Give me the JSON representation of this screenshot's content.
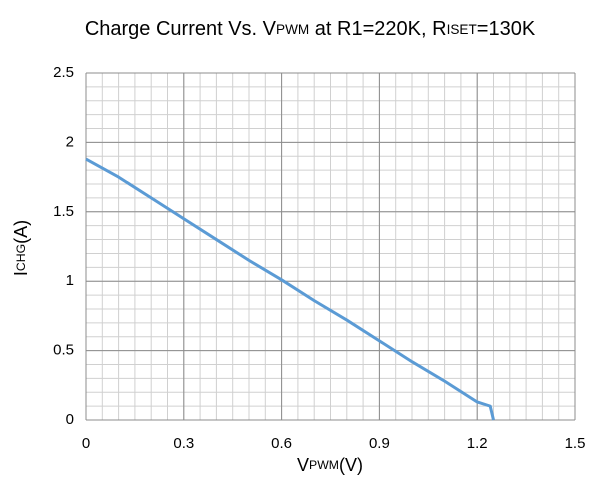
{
  "chart_data": {
    "type": "line",
    "title": [
      {
        "text": "Charge Current Vs. V"
      },
      {
        "text": "PWM",
        "sub": true
      },
      {
        "text": " at R1=220K, R"
      },
      {
        "text": "ISET",
        "sub": true
      },
      {
        "text": "=130K"
      }
    ],
    "xlabel": [
      {
        "text": "V"
      },
      {
        "text": "PWM",
        "sub": true
      },
      {
        "text": "(V)"
      }
    ],
    "ylabel": [
      {
        "text": "I"
      },
      {
        "text": "CHG",
        "sub": true
      },
      {
        "text": "(A)"
      }
    ],
    "x": [
      0,
      0.1,
      0.2,
      0.3,
      0.4,
      0.5,
      0.6,
      0.7,
      0.8,
      0.9,
      1.0,
      1.1,
      1.2,
      1.24,
      1.25
    ],
    "series": [
      {
        "color": "#5b9bd5",
        "values": [
          1.88,
          1.75,
          1.6,
          1.45,
          1.3,
          1.15,
          1.01,
          0.86,
          0.72,
          0.57,
          0.42,
          0.28,
          0.13,
          0.1,
          0
        ]
      }
    ],
    "xlim": [
      0,
      1.5
    ],
    "xticks": [
      0,
      0.3,
      0.6,
      0.9,
      1.2,
      1.5
    ],
    "x_minor_step": 0.05,
    "ylim": [
      0,
      2.5
    ],
    "yticks": [
      0,
      0.5,
      1,
      1.5,
      2,
      2.5
    ],
    "y_minor_step": 0.1,
    "grid": true
  }
}
